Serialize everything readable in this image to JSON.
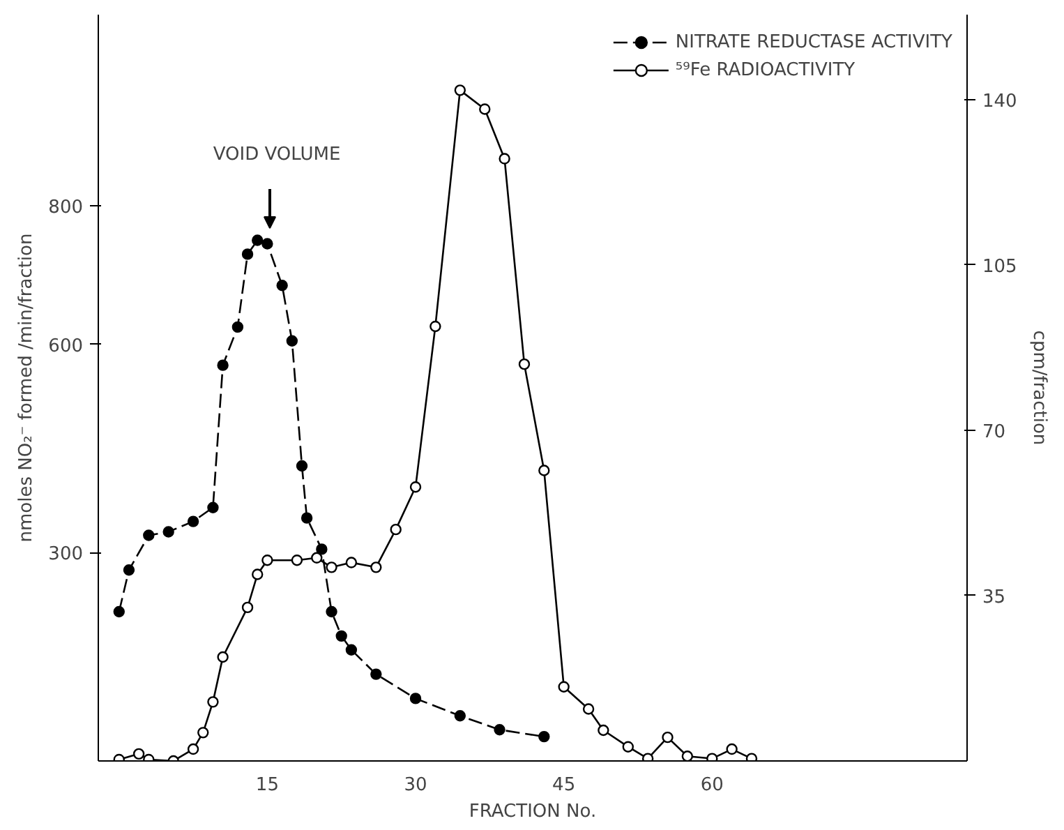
{
  "chart_data": {
    "type": "line",
    "xlabel": "FRACTION No.",
    "ylabel": "nmoles NO₂⁻ formed /min/fraction",
    "y2label": "cpm/fraction",
    "xlim": [
      -2.1,
      85.8
    ],
    "xticks": [
      15,
      30,
      45,
      60
    ],
    "ylim": [
      0,
      1075
    ],
    "yticks": [
      300,
      600,
      800
    ],
    "y2lim": [
      0,
      158
    ],
    "y2ticks": [
      35,
      70,
      105,
      140
    ],
    "grid": false,
    "legend": "top right",
    "marker": "circle",
    "annotations": [
      "VOID VOLUME"
    ],
    "series": [
      {
        "name": "NITRATE REDUCTASE ACTIVITY",
        "color": "#000000",
        "line_style": "dashed",
        "x": [
          0,
          1,
          3,
          5,
          7.5,
          9.5,
          10.5,
          12,
          13,
          14,
          15,
          16.5,
          17.5,
          18.5,
          19,
          20.5,
          21.5,
          22.5,
          23.5,
          26,
          30,
          34.5,
          38.5,
          43
        ],
        "values": [
          215,
          275,
          325,
          330,
          345,
          365,
          570,
          625,
          730,
          750,
          745,
          685,
          605,
          425,
          350,
          305,
          215,
          180,
          160,
          125,
          90,
          65,
          45,
          35
        ]
      },
      {
        "name": "⁵⁹Fe RADIOACTIVITY",
        "color": "#000000",
        "line_style": "solid",
        "axis": "y2",
        "x": [
          0,
          2,
          3,
          5.5,
          7.5,
          8.5,
          9.5,
          10.5,
          13,
          14,
          15,
          18,
          20,
          21.5,
          23.5,
          26,
          28,
          30,
          32,
          34.5,
          37,
          39,
          41,
          43,
          45,
          47.5,
          49,
          51.5,
          53.5,
          55.5,
          57.5,
          60,
          62,
          64
        ],
        "values": [
          0.3,
          1.5,
          0.3,
          0,
          2.5,
          6,
          12.5,
          22,
          32.5,
          39.5,
          42.5,
          42.5,
          43,
          41,
          42,
          41,
          49,
          58,
          92,
          142,
          138,
          127.5,
          84,
          61.5,
          15.7,
          11,
          6.5,
          3,
          0.5,
          5,
          1,
          0.5,
          2.5,
          0.5
        ]
      }
    ]
  }
}
